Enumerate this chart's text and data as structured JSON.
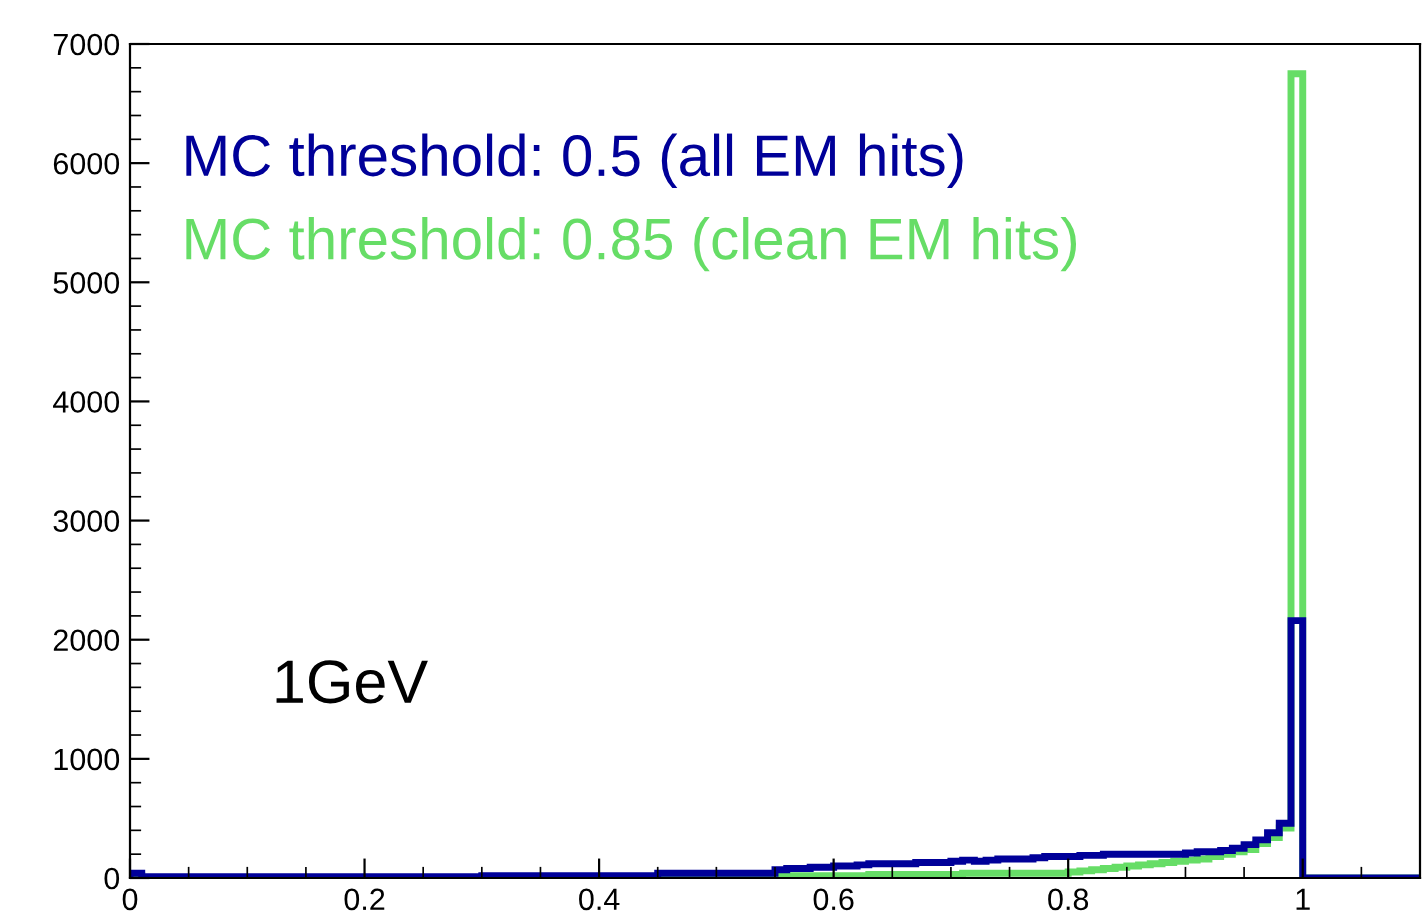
{
  "chart_data": {
    "type": "histogram",
    "bins": [
      0,
      0.01,
      0.3,
      0.45,
      0.55,
      0.56,
      0.57,
      0.58,
      0.59,
      0.6,
      0.61,
      0.62,
      0.63,
      0.64,
      0.65,
      0.66,
      0.67,
      0.68,
      0.69,
      0.7,
      0.71,
      0.72,
      0.73,
      0.74,
      0.75,
      0.76,
      0.77,
      0.78,
      0.79,
      0.8,
      0.81,
      0.82,
      0.83,
      0.84,
      0.85,
      0.86,
      0.87,
      0.88,
      0.89,
      0.9,
      0.91,
      0.92,
      0.93,
      0.94,
      0.95,
      0.96,
      0.97,
      0.98,
      0.99,
      1,
      1.1
    ],
    "series": [
      {
        "name": "MC threshold: 0.85 (clean EM hits)",
        "color": "#66dd66",
        "values": [
          20,
          0,
          10,
          20,
          20,
          20,
          20,
          20,
          20,
          20,
          20,
          20,
          30,
          30,
          30,
          30,
          30,
          30,
          30,
          30,
          40,
          40,
          40,
          40,
          40,
          40,
          40,
          40,
          40,
          50,
          60,
          70,
          80,
          90,
          100,
          110,
          120,
          130,
          140,
          150,
          160,
          180,
          200,
          220,
          240,
          290,
          340,
          420,
          6750,
          0
        ]
      },
      {
        "name": "MC threshold: 0.5 (all EM hits)",
        "color": "#000099",
        "values": [
          40,
          10,
          20,
          40,
          70,
          80,
          80,
          90,
          90,
          100,
          100,
          110,
          120,
          120,
          120,
          120,
          130,
          130,
          130,
          140,
          150,
          140,
          150,
          160,
          160,
          160,
          170,
          180,
          180,
          180,
          190,
          190,
          200,
          200,
          200,
          200,
          200,
          200,
          200,
          210,
          220,
          220,
          230,
          250,
          280,
          320,
          380,
          460,
          2160,
          0
        ]
      }
    ],
    "xlim": [
      0,
      1.1
    ],
    "xticks": [
      0,
      0.2,
      0.4,
      0.6,
      0.8,
      1
    ],
    "ylim": [
      0,
      7000
    ],
    "yticks": [
      0,
      1000,
      2000,
      3000,
      4000,
      5000,
      6000,
      7000
    ],
    "legend": "top left",
    "annotations": [
      "1GeV"
    ]
  }
}
